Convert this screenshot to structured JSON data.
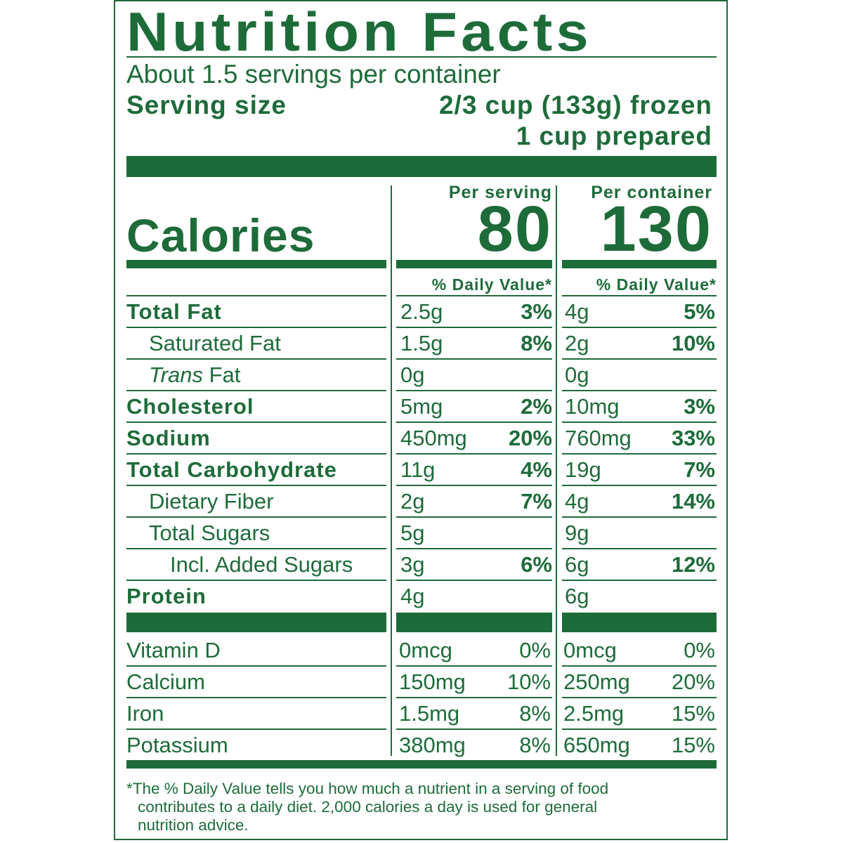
{
  "title": "Nutrition Facts",
  "servings_per_container": "About 1.5 servings per container",
  "serving_size_label": "Serving size",
  "serving_size_value_1": "2/3 cup (133g) frozen",
  "serving_size_value_2": "1 cup prepared",
  "columns": {
    "per_serving": "Per serving",
    "per_container": "Per container"
  },
  "calories": {
    "label": "Calories",
    "per_serving": "80",
    "per_container": "130"
  },
  "dv_header": "% Daily Value*",
  "nutrients": [
    {
      "name": "Total Fat",
      "style": "bold",
      "indent": 0,
      "serving_amt": "2.5g",
      "serving_dv": "3%",
      "container_amt": "4g",
      "container_dv": "5%"
    },
    {
      "name": "Saturated Fat",
      "style": "normal",
      "indent": 1,
      "serving_amt": "1.5g",
      "serving_dv": "8%",
      "container_amt": "2g",
      "container_dv": "10%"
    },
    {
      "name_italic": "Trans",
      "name": " Fat",
      "style": "normal",
      "indent": 1,
      "serving_amt": "0g",
      "serving_dv": "",
      "container_amt": "0g",
      "container_dv": ""
    },
    {
      "name": "Cholesterol",
      "style": "bold",
      "indent": 0,
      "serving_amt": "5mg",
      "serving_dv": "2%",
      "container_amt": "10mg",
      "container_dv": "3%"
    },
    {
      "name": "Sodium",
      "style": "bold",
      "indent": 0,
      "serving_amt": "450mg",
      "serving_dv": "20%",
      "container_amt": "760mg",
      "container_dv": "33%"
    },
    {
      "name": "Total Carbohydrate",
      "style": "bold",
      "indent": 0,
      "serving_amt": "11g",
      "serving_dv": "4%",
      "container_amt": "19g",
      "container_dv": "7%"
    },
    {
      "name": "Dietary Fiber",
      "style": "normal",
      "indent": 1,
      "serving_amt": "2g",
      "serving_dv": "7%",
      "container_amt": "4g",
      "container_dv": "14%"
    },
    {
      "name": "Total Sugars",
      "style": "normal",
      "indent": 1,
      "serving_amt": "5g",
      "serving_dv": "",
      "container_amt": "9g",
      "container_dv": ""
    },
    {
      "name": "Incl. Added Sugars",
      "style": "normal",
      "indent": 2,
      "serving_amt": "3g",
      "serving_dv": "6%",
      "container_amt": "6g",
      "container_dv": "12%"
    },
    {
      "name": "Protein",
      "style": "bold",
      "indent": 0,
      "serving_amt": "4g",
      "serving_dv": "",
      "container_amt": "6g",
      "container_dv": ""
    }
  ],
  "vitamins": [
    {
      "name": "Vitamin D",
      "serving_amt": "0mcg",
      "serving_dv": "0%",
      "container_amt": "0mcg",
      "container_dv": "0%"
    },
    {
      "name": "Calcium",
      "serving_amt": "150mg",
      "serving_dv": "10%",
      "container_amt": "250mg",
      "container_dv": "20%"
    },
    {
      "name": "Iron",
      "serving_amt": "1.5mg",
      "serving_dv": "8%",
      "container_amt": "2.5mg",
      "container_dv": "15%"
    },
    {
      "name": "Potassium",
      "serving_amt": "380mg",
      "serving_dv": "8%",
      "container_amt": "650mg",
      "container_dv": "15%"
    }
  ],
  "footnote": {
    "line1": "*The % Daily Value tells you how much a nutrient in a serving of food",
    "line2": "contributes to a daily diet. 2,000 calories a day is used for general",
    "line3": "nutrition advice."
  },
  "colors": {
    "ink": "#1e6b3a",
    "background": "#ffffff"
  }
}
